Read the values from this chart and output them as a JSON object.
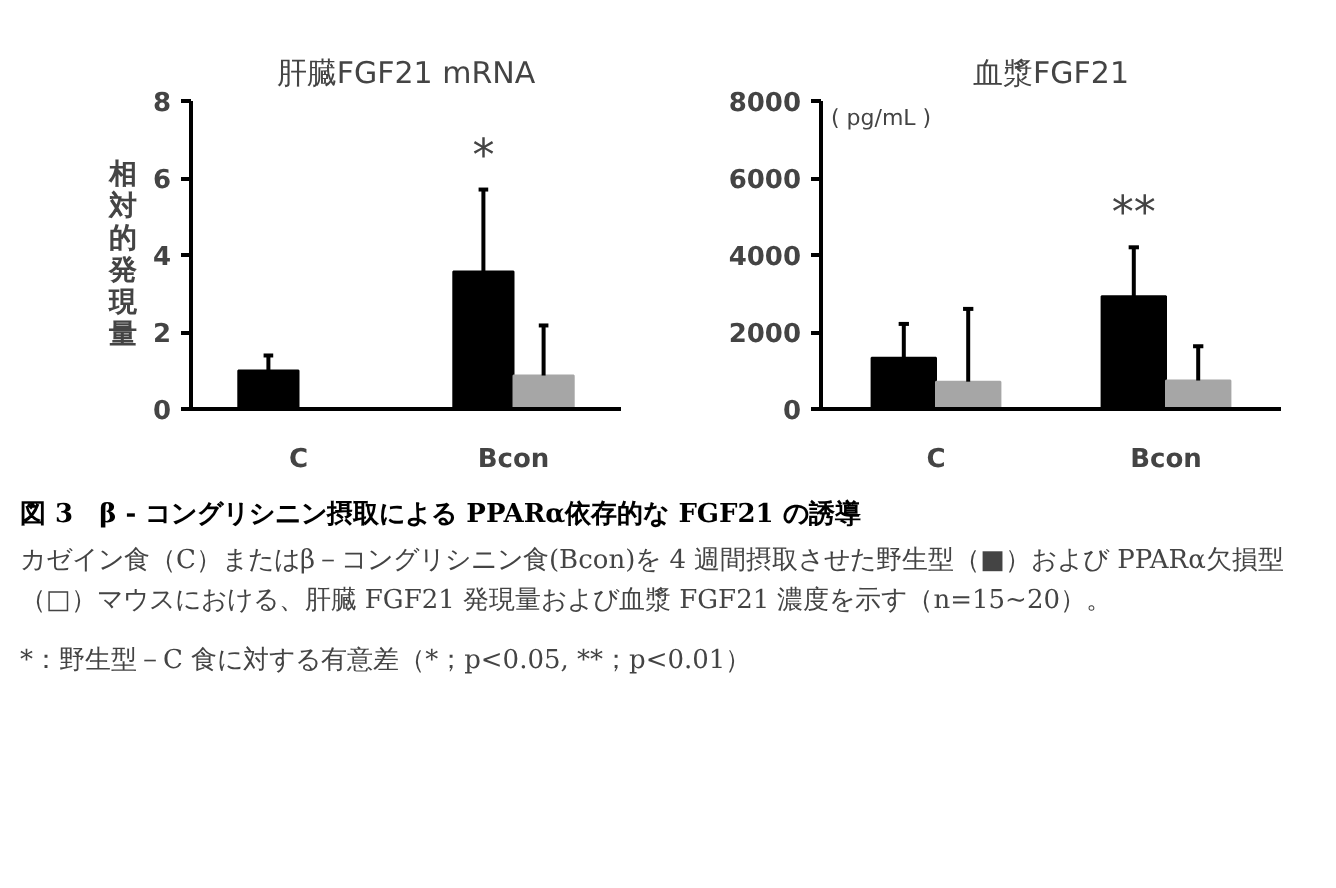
{
  "chart_data": [
    {
      "type": "bar",
      "title": "肝臓FGF21 mRNA",
      "ylabel": "相対的発現量",
      "categories": [
        "C",
        "Bcon"
      ],
      "series": [
        {
          "color": "#000000",
          "values": [
            1.0,
            3.57
          ],
          "errors": [
            [
              1.0,
              1.39
            ],
            [
              3.57,
              5.7
            ]
          ]
        },
        {
          "color": "#a6a6a6",
          "values": [
            null,
            0.87
          ],
          "errors": [
            null,
            [
              0.87,
              2.17
            ]
          ]
        }
      ],
      "ylim": [
        0,
        8
      ],
      "yticks": [
        0,
        2,
        4,
        6,
        8
      ],
      "annotations": [
        "*"
      ]
    },
    {
      "type": "bar",
      "title": "血漿FGF21",
      "ylabel": "( pg/mL )",
      "categories": [
        "C",
        "Bcon"
      ],
      "series": [
        {
          "color": "#000000",
          "values": [
            1330,
            2930
          ],
          "errors": [
            [
              1330,
              2210
            ],
            [
              2930,
              4200
            ]
          ]
        },
        {
          "color": "#a6a6a6",
          "values": [
            710,
            740
          ],
          "errors": [
            [
              710,
              2600
            ],
            [
              740,
              1630
            ]
          ]
        }
      ],
      "ylim": [
        0,
        8000
      ],
      "yticks": [
        0,
        2000,
        4000,
        6000,
        8000
      ],
      "annotations": [
        "**",
        "図 3　β - コングリシニン摂取による PPARα依存的な FGF21 の誘導",
        "カゼイン食（C）またはβ－コングリシニン食(Bcon)を 4 週間摂取させた野生型（■）および PPARα欠損型（□）マウスにおける、肝臓 FGF21 発現量および血漿 FGF21 濃度を示す（n=15~20）。",
        "*：野生型－C 食に対する有意差（*；p<0.05, **；p<0.01）"
      ]
    }
  ]
}
